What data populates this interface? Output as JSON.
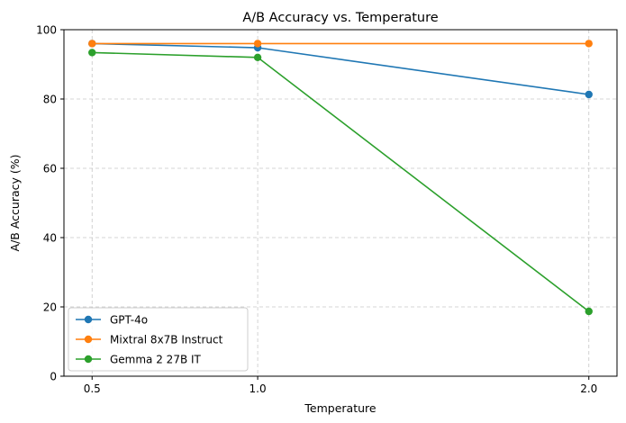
{
  "chart_data": {
    "type": "line",
    "title": "A/B Accuracy vs. Temperature",
    "xlabel": "Temperature",
    "ylabel": "A/B Accuracy (%)",
    "x": [
      0.5,
      1.0,
      2.0
    ],
    "x_tick_labels": [
      "0.5",
      "1.0",
      "2.0"
    ],
    "ylim": [
      0,
      100
    ],
    "y_ticks": [
      0,
      20,
      40,
      60,
      80,
      100
    ],
    "grid": true,
    "legend_position": "bottom-left",
    "series": [
      {
        "name": "GPT-4o",
        "values": [
          96.0,
          94.8,
          81.3
        ],
        "color": "#1f77b4"
      },
      {
        "name": "Mixtral 8x7B Instruct",
        "values": [
          96.0,
          96.0,
          96.0
        ],
        "color": "#ff7f0e"
      },
      {
        "name": "Gemma 2 27B IT",
        "values": [
          93.4,
          92.0,
          18.7
        ],
        "color": "#2ca02c"
      }
    ]
  }
}
